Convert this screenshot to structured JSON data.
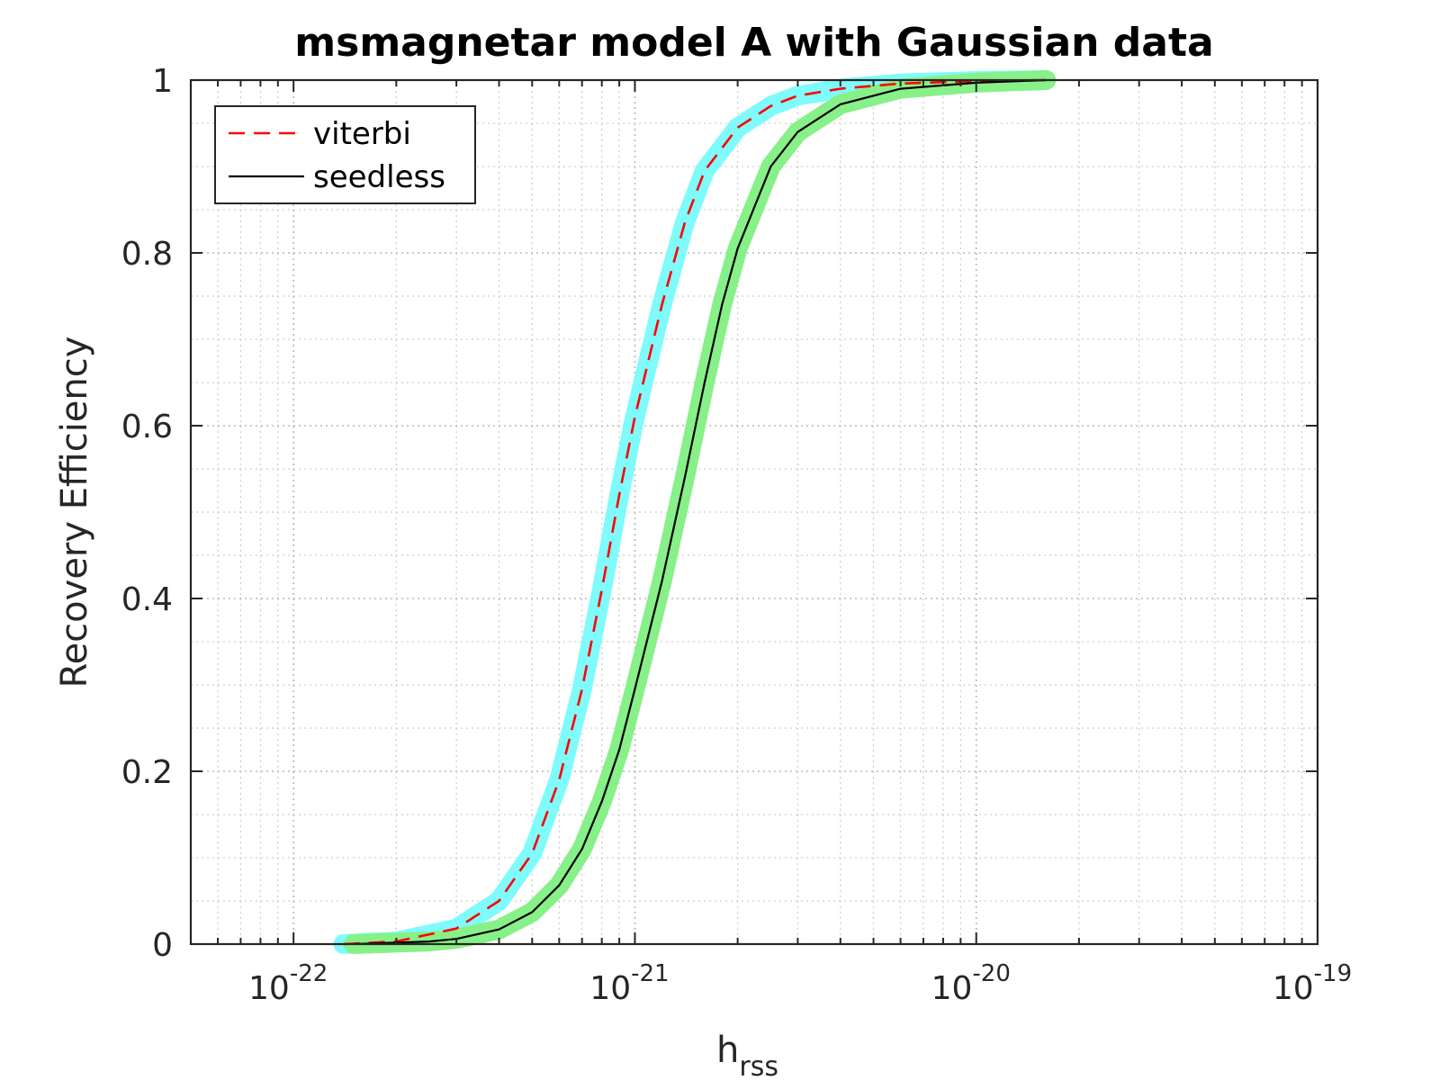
{
  "chart_data": {
    "type": "line",
    "title": "msmagnetar model A with Gaussian data",
    "xlabel": {
      "base": "h",
      "subscript": "rss"
    },
    "ylabel": "Recovery Efficiency",
    "xscale": "log",
    "xlim": [
      5e-23,
      1e-19
    ],
    "ylim": [
      0,
      1
    ],
    "xticks": [
      {
        "value": 1e-22,
        "base": "10",
        "exponent": "-22"
      },
      {
        "value": 1e-21,
        "base": "10",
        "exponent": "-21"
      },
      {
        "value": 1e-20,
        "base": "10",
        "exponent": "-20"
      },
      {
        "value": 1e-19,
        "base": "10",
        "exponent": "-19"
      }
    ],
    "yticks": [
      {
        "value": 0,
        "label": "0"
      },
      {
        "value": 0.2,
        "label": "0.2"
      },
      {
        "value": 0.4,
        "label": "0.4"
      },
      {
        "value": 0.6,
        "label": "0.6"
      },
      {
        "value": 0.8,
        "label": "0.8"
      },
      {
        "value": 1,
        "label": "1"
      }
    ],
    "grid": "on (major and minor, dotted)",
    "legend_position": "top-left",
    "series": [
      {
        "name": "viterbi",
        "line_color": "#ff0000",
        "line_style": "dashed",
        "band_color": "#7ffbfb",
        "x": [
          1.4e-22,
          2e-22,
          3e-22,
          4e-22,
          5e-22,
          6e-22,
          7e-22,
          8e-22,
          9e-22,
          1e-21,
          1.2e-21,
          1.4e-21,
          1.6e-21,
          2e-21,
          2.5e-21,
          3e-21,
          4e-21,
          6e-21,
          1e-20,
          1.6e-20
        ],
        "y": [
          0.0,
          0.003,
          0.018,
          0.05,
          0.105,
          0.19,
          0.295,
          0.41,
          0.52,
          0.61,
          0.74,
          0.835,
          0.895,
          0.945,
          0.97,
          0.982,
          0.99,
          0.996,
          0.999,
          1.0
        ]
      },
      {
        "name": "seedless",
        "line_color": "#000000",
        "line_style": "solid",
        "band_color": "#88f088",
        "x": [
          1.5e-22,
          2.5e-22,
          3e-22,
          4e-22,
          5e-22,
          6e-22,
          7e-22,
          8e-22,
          9e-22,
          1e-21,
          1.2e-21,
          1.4e-21,
          1.6e-21,
          1.8e-21,
          2e-21,
          2.5e-21,
          3e-21,
          4e-21,
          6e-21,
          1e-20,
          1.6e-20
        ],
        "y": [
          0.0,
          0.003,
          0.006,
          0.017,
          0.037,
          0.068,
          0.11,
          0.165,
          0.225,
          0.295,
          0.42,
          0.54,
          0.65,
          0.74,
          0.805,
          0.9,
          0.94,
          0.972,
          0.99,
          0.997,
          1.0
        ]
      }
    ]
  }
}
